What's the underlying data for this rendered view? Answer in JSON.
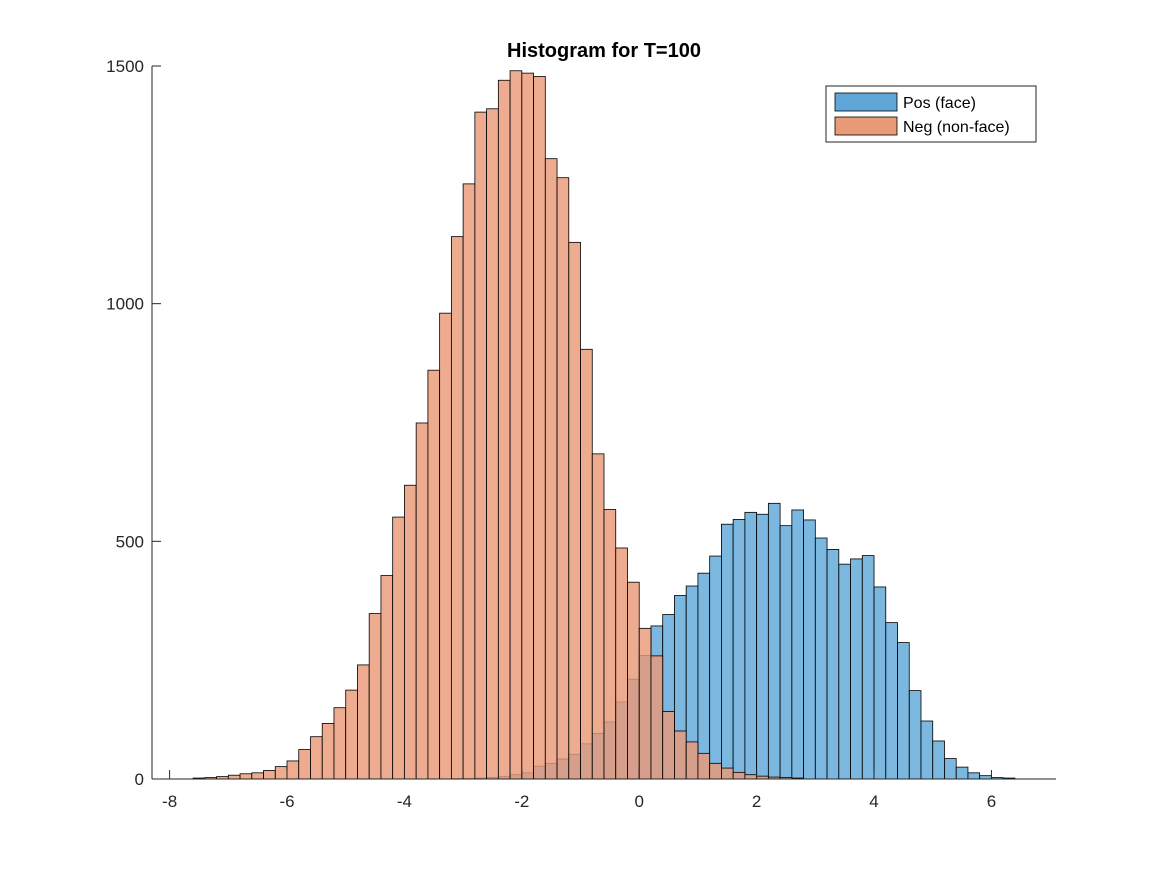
{
  "chart_data": {
    "type": "bar",
    "title": "Histogram for T=100",
    "xlabel": "",
    "ylabel": "",
    "xlim": [
      -8.3,
      7.1
    ],
    "ylim": [
      0,
      1500
    ],
    "xticks": [
      -8,
      -6,
      -4,
      -2,
      0,
      2,
      4,
      6
    ],
    "yticks": [
      0,
      500,
      1000,
      1500
    ],
    "grid": false,
    "legend_position": "top-right",
    "series": [
      {
        "name": "Pos (face)",
        "color": "#5FA7D9",
        "bin_width": 0.2,
        "bins": [
          {
            "x0": -3.2,
            "value": 1
          },
          {
            "x0": -3.0,
            "value": 1
          },
          {
            "x0": -2.8,
            "value": 2
          },
          {
            "x0": -2.6,
            "value": 3
          },
          {
            "x0": -2.4,
            "value": 5
          },
          {
            "x0": -2.2,
            "value": 9
          },
          {
            "x0": -2.0,
            "value": 13
          },
          {
            "x0": -1.8,
            "value": 27
          },
          {
            "x0": -1.6,
            "value": 33
          },
          {
            "x0": -1.4,
            "value": 42
          },
          {
            "x0": -1.2,
            "value": 52
          },
          {
            "x0": -1.0,
            "value": 74
          },
          {
            "x0": -0.8,
            "value": 96
          },
          {
            "x0": -0.6,
            "value": 120
          },
          {
            "x0": -0.4,
            "value": 162
          },
          {
            "x0": -0.2,
            "value": 210
          },
          {
            "x0": 0.0,
            "value": 260
          },
          {
            "x0": 0.2,
            "value": 322
          },
          {
            "x0": 0.4,
            "value": 346
          },
          {
            "x0": 0.6,
            "value": 386
          },
          {
            "x0": 0.8,
            "value": 406
          },
          {
            "x0": 1.0,
            "value": 433
          },
          {
            "x0": 1.2,
            "value": 469
          },
          {
            "x0": 1.4,
            "value": 536
          },
          {
            "x0": 1.6,
            "value": 546
          },
          {
            "x0": 1.8,
            "value": 561
          },
          {
            "x0": 2.0,
            "value": 557
          },
          {
            "x0": 2.2,
            "value": 580
          },
          {
            "x0": 2.4,
            "value": 533
          },
          {
            "x0": 2.6,
            "value": 566
          },
          {
            "x0": 2.8,
            "value": 545
          },
          {
            "x0": 3.0,
            "value": 507
          },
          {
            "x0": 3.2,
            "value": 483
          },
          {
            "x0": 3.4,
            "value": 452
          },
          {
            "x0": 3.6,
            "value": 463
          },
          {
            "x0": 3.8,
            "value": 470
          },
          {
            "x0": 4.0,
            "value": 404
          },
          {
            "x0": 4.2,
            "value": 329
          },
          {
            "x0": 4.4,
            "value": 287
          },
          {
            "x0": 4.6,
            "value": 186
          },
          {
            "x0": 4.8,
            "value": 122
          },
          {
            "x0": 5.0,
            "value": 80
          },
          {
            "x0": 5.2,
            "value": 43
          },
          {
            "x0": 5.4,
            "value": 25
          },
          {
            "x0": 5.6,
            "value": 13
          },
          {
            "x0": 5.8,
            "value": 7
          },
          {
            "x0": 6.0,
            "value": 3
          },
          {
            "x0": 6.2,
            "value": 2
          }
        ]
      },
      {
        "name": "Neg (non-face)",
        "color": "#E99A77",
        "bin_width": 0.2,
        "bins": [
          {
            "x0": -7.6,
            "value": 2
          },
          {
            "x0": -7.4,
            "value": 3
          },
          {
            "x0": -7.2,
            "value": 5
          },
          {
            "x0": -7.0,
            "value": 8
          },
          {
            "x0": -6.8,
            "value": 11
          },
          {
            "x0": -6.6,
            "value": 13
          },
          {
            "x0": -6.4,
            "value": 18
          },
          {
            "x0": -6.2,
            "value": 26
          },
          {
            "x0": -6.0,
            "value": 38
          },
          {
            "x0": -5.8,
            "value": 62
          },
          {
            "x0": -5.6,
            "value": 89
          },
          {
            "x0": -5.4,
            "value": 117
          },
          {
            "x0": -5.2,
            "value": 150
          },
          {
            "x0": -5.0,
            "value": 187
          },
          {
            "x0": -4.8,
            "value": 240
          },
          {
            "x0": -4.6,
            "value": 348
          },
          {
            "x0": -4.4,
            "value": 428
          },
          {
            "x0": -4.2,
            "value": 551
          },
          {
            "x0": -4.0,
            "value": 618
          },
          {
            "x0": -3.8,
            "value": 749
          },
          {
            "x0": -3.6,
            "value": 860
          },
          {
            "x0": -3.4,
            "value": 980
          },
          {
            "x0": -3.2,
            "value": 1141
          },
          {
            "x0": -3.0,
            "value": 1252
          },
          {
            "x0": -2.8,
            "value": 1403
          },
          {
            "x0": -2.6,
            "value": 1410
          },
          {
            "x0": -2.4,
            "value": 1470
          },
          {
            "x0": -2.2,
            "value": 1490
          },
          {
            "x0": -2.0,
            "value": 1485
          },
          {
            "x0": -1.8,
            "value": 1478
          },
          {
            "x0": -1.6,
            "value": 1305
          },
          {
            "x0": -1.4,
            "value": 1265
          },
          {
            "x0": -1.2,
            "value": 1129
          },
          {
            "x0": -1.0,
            "value": 904
          },
          {
            "x0": -0.8,
            "value": 684
          },
          {
            "x0": -0.6,
            "value": 567
          },
          {
            "x0": -0.4,
            "value": 486
          },
          {
            "x0": -0.2,
            "value": 414
          },
          {
            "x0": 0.0,
            "value": 317
          },
          {
            "x0": 0.2,
            "value": 259
          },
          {
            "x0": 0.4,
            "value": 142
          },
          {
            "x0": 0.6,
            "value": 101
          },
          {
            "x0": 0.8,
            "value": 78
          },
          {
            "x0": 1.0,
            "value": 54
          },
          {
            "x0": 1.2,
            "value": 33
          },
          {
            "x0": 1.4,
            "value": 23
          },
          {
            "x0": 1.6,
            "value": 14
          },
          {
            "x0": 1.8,
            "value": 9
          },
          {
            "x0": 2.0,
            "value": 6
          },
          {
            "x0": 2.2,
            "value": 4
          },
          {
            "x0": 2.4,
            "value": 3
          },
          {
            "x0": 2.6,
            "value": 2
          }
        ]
      }
    ]
  }
}
